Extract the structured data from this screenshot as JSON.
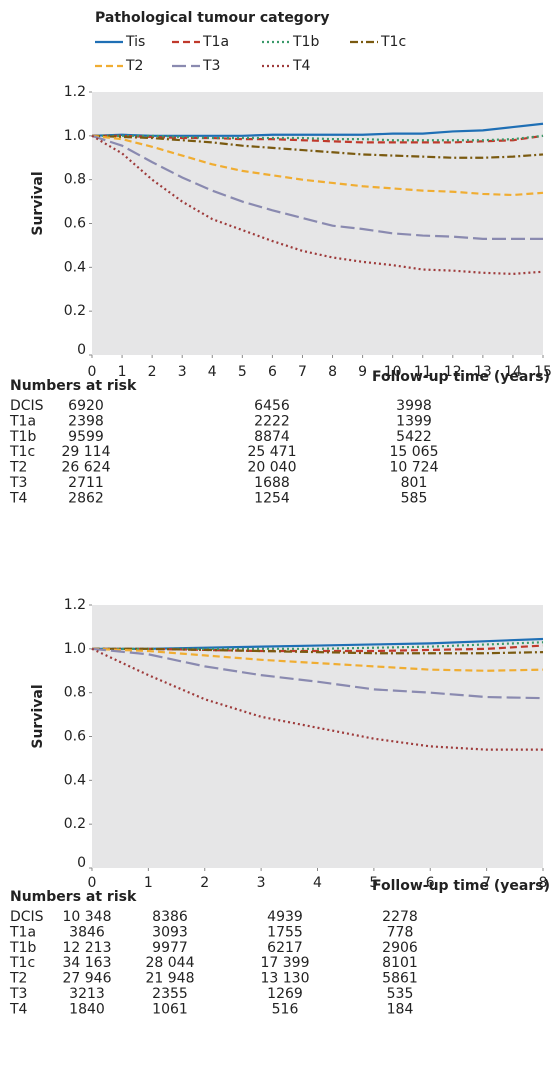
{
  "chart_data": [
    {
      "type": "line",
      "legend_title": "Pathological tumour category",
      "legend": true,
      "y_label": "Survival",
      "x_label": "Follow-up time (years)",
      "xlim": [
        0,
        15
      ],
      "xticks": [
        0,
        1,
        2,
        3,
        4,
        5,
        6,
        7,
        8,
        9,
        10,
        11,
        12,
        13,
        14,
        15
      ],
      "ylim": [
        0,
        1.2
      ],
      "yticks": [
        0,
        0.2,
        0.4,
        0.6,
        0.8,
        {
          "value": 1,
          "label": "1.0"
        },
        1.2
      ],
      "x": [
        0,
        1,
        2,
        3,
        4,
        5,
        6,
        7,
        8,
        9,
        10,
        11,
        12,
        13,
        14,
        15
      ],
      "series": [
        {
          "name": "Tis",
          "color": "#1f6fb5",
          "dash": "solid",
          "values": [
            1.0,
            1.005,
            1.0,
            1.0,
            1.0,
            1.0,
            1.005,
            1.005,
            1.005,
            1.005,
            1.01,
            1.01,
            1.02,
            1.025,
            1.04,
            1.055
          ]
        },
        {
          "name": "T1a",
          "color": "#c0392b",
          "dash": "dashed",
          "values": [
            1.0,
            1.0,
            0.995,
            0.99,
            0.99,
            0.985,
            0.985,
            0.98,
            0.975,
            0.97,
            0.97,
            0.97,
            0.97,
            0.975,
            0.98,
            1.0
          ]
        },
        {
          "name": "T1b",
          "color": "#3a9a6a",
          "dash": "dotted",
          "values": [
            1.0,
            1.0,
            1.0,
            0.995,
            0.99,
            0.99,
            0.99,
            0.99,
            0.985,
            0.985,
            0.98,
            0.98,
            0.98,
            0.98,
            0.985,
            1.0
          ]
        },
        {
          "name": "T1c",
          "color": "#7a5a10",
          "dash": "dashdot",
          "values": [
            1.0,
            0.995,
            0.99,
            0.98,
            0.97,
            0.955,
            0.945,
            0.935,
            0.925,
            0.915,
            0.91,
            0.905,
            0.9,
            0.9,
            0.905,
            0.915
          ]
        },
        {
          "name": "T2",
          "color": "#f0ad32",
          "dash": "dashed",
          "values": [
            1.0,
            0.985,
            0.95,
            0.91,
            0.87,
            0.84,
            0.82,
            0.8,
            0.785,
            0.77,
            0.76,
            0.75,
            0.745,
            0.735,
            0.73,
            0.74
          ]
        },
        {
          "name": "T3",
          "color": "#8a8ab0",
          "dash": "longdash",
          "values": [
            1.0,
            0.955,
            0.88,
            0.81,
            0.75,
            0.7,
            0.66,
            0.625,
            0.59,
            0.575,
            0.555,
            0.545,
            0.54,
            0.53,
            0.53,
            0.53
          ]
        },
        {
          "name": "T4",
          "color": "#9e3b3b",
          "dash": "dotted",
          "values": [
            1.0,
            0.92,
            0.8,
            0.7,
            0.62,
            0.57,
            0.52,
            0.475,
            0.445,
            0.425,
            0.41,
            0.39,
            0.385,
            0.375,
            0.37,
            0.38
          ]
        }
      ],
      "risk_table": {
        "title": "Numbers at risk",
        "rows": [
          [
            "DCIS",
            "6920",
            "6456",
            "3998"
          ],
          [
            "T1a",
            "2398",
            "2222",
            "1399"
          ],
          [
            "T1b",
            "9599",
            "8874",
            "5422"
          ],
          [
            "T1c",
            "29 114",
            "25 471",
            "15 065"
          ],
          [
            "T2",
            "26 624",
            "20 040",
            "10 724"
          ],
          [
            "T3",
            "2711",
            "1688",
            "801"
          ],
          [
            "T4",
            "2862",
            "1254",
            "585"
          ]
        ]
      }
    },
    {
      "type": "line",
      "legend": false,
      "y_label": "Survival",
      "x_label": "Follow-up time (years)",
      "xlim": [
        0,
        8
      ],
      "xticks": [
        0,
        1,
        2,
        3,
        4,
        5,
        6,
        7,
        8
      ],
      "ylim": [
        0,
        1.2
      ],
      "yticks": [
        0,
        0.2,
        0.4,
        0.6,
        0.8,
        {
          "value": 1,
          "label": "1.0"
        },
        1.2
      ],
      "x": [
        0,
        1,
        2,
        3,
        4,
        5,
        6,
        7,
        8
      ],
      "series": [
        {
          "name": "Tis",
          "color": "#1f6fb5",
          "dash": "solid",
          "values": [
            1.0,
            1.0,
            1.005,
            1.01,
            1.015,
            1.02,
            1.025,
            1.035,
            1.045
          ]
        },
        {
          "name": "T1a",
          "color": "#c0392b",
          "dash": "dashed",
          "values": [
            1.0,
            1.0,
            0.995,
            0.99,
            0.99,
            0.99,
            0.995,
            1.0,
            1.015
          ]
        },
        {
          "name": "T1b",
          "color": "#3a9a6a",
          "dash": "dotted",
          "values": [
            1.0,
            1.0,
            1.0,
            1.0,
            1.0,
            1.005,
            1.01,
            1.02,
            1.03
          ]
        },
        {
          "name": "T1c",
          "color": "#7a5a10",
          "dash": "dashdot",
          "values": [
            1.0,
            1.0,
            0.995,
            0.99,
            0.985,
            0.98,
            0.98,
            0.98,
            0.985
          ]
        },
        {
          "name": "T2",
          "color": "#f0ad32",
          "dash": "dashed",
          "values": [
            1.0,
            0.99,
            0.97,
            0.95,
            0.935,
            0.92,
            0.905,
            0.9,
            0.905
          ]
        },
        {
          "name": "T3",
          "color": "#8a8ab0",
          "dash": "longdash",
          "values": [
            1.0,
            0.975,
            0.92,
            0.88,
            0.85,
            0.815,
            0.8,
            0.78,
            0.775
          ]
        },
        {
          "name": "T4",
          "color": "#9e3b3b",
          "dash": "dotted",
          "values": [
            1.0,
            0.88,
            0.77,
            0.69,
            0.64,
            0.59,
            0.555,
            0.54,
            0.54
          ]
        }
      ],
      "risk_table": {
        "title": "Numbers at risk",
        "rows": [
          [
            "DCIS",
            "10 348",
            "8386",
            "4939",
            "2278"
          ],
          [
            "T1a",
            "3846",
            "3093",
            "1755",
            "778"
          ],
          [
            "T1b",
            "12 213",
            "9977",
            "6217",
            "2906"
          ],
          [
            "T1c",
            "34 163",
            "28 044",
            "17 399",
            "8101"
          ],
          [
            "T2",
            "27 946",
            "21 948",
            "13 130",
            "5861"
          ],
          [
            "T3",
            "3213",
            "2355",
            "1269",
            "535"
          ],
          [
            "T4",
            "1840",
            "1061",
            "516",
            "184"
          ]
        ]
      }
    }
  ]
}
